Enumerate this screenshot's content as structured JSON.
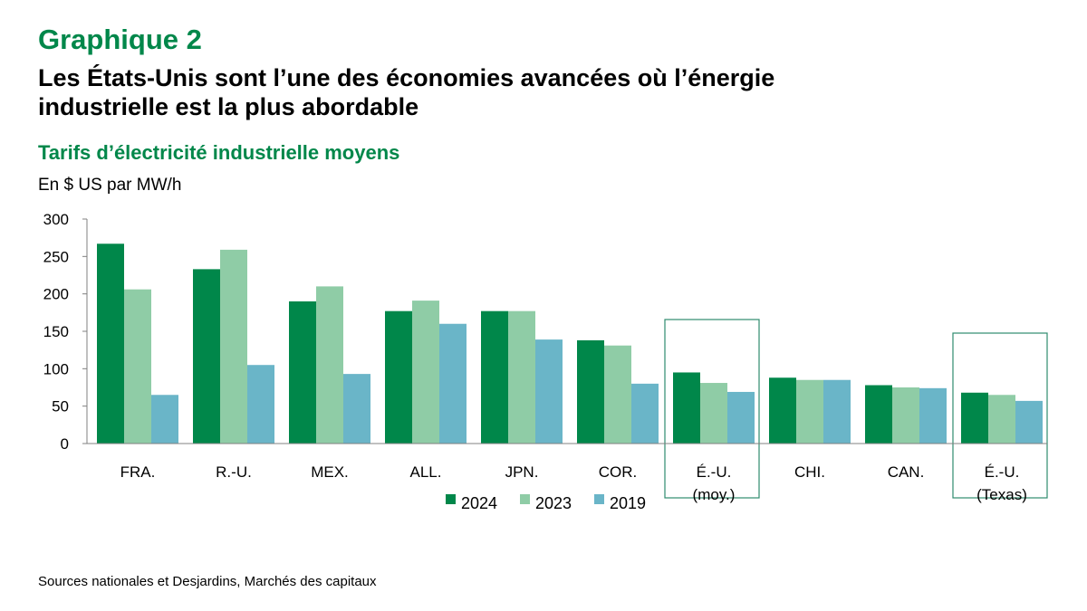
{
  "header": {
    "graph_label": "Graphique 2",
    "title_line1": "Les États-Unis sont l’une des économies avancées où l’énergie",
    "title_line2": "industrielle est la plus abordable",
    "subtitle": "Tarifs d’électricité industrielle moyens",
    "unit": "En $ US par MW/h"
  },
  "source": "Sources nationales et Desjardins, Marchés des capitaux",
  "colors": {
    "2024": "#00874a",
    "2023": "#8fcca6",
    "2019": "#6ab5c8",
    "highlight_box": "#2e8b6e"
  },
  "chart_data": {
    "type": "bar",
    "title": "Tarifs d’électricité industrielle moyens",
    "ylabel": "En $ US par MW/h",
    "ylim": [
      0,
      300
    ],
    "yticks": [
      "0",
      "50",
      "100",
      "150",
      "200",
      "250",
      "300"
    ],
    "categories": [
      [
        "FRA."
      ],
      [
        "R.-U."
      ],
      [
        "MEX."
      ],
      [
        "ALL."
      ],
      [
        "JPN."
      ],
      [
        "COR."
      ],
      [
        "É.-U.",
        "(moy.)"
      ],
      [
        "CHI."
      ],
      [
        "CAN."
      ],
      [
        "É.-U.",
        "(Texas)"
      ]
    ],
    "series": [
      {
        "name": "2024",
        "values": [
          267,
          233,
          190,
          177,
          177,
          138,
          95,
          88,
          78,
          68
        ]
      },
      {
        "name": "2023",
        "values": [
          206,
          259,
          210,
          191,
          177,
          131,
          81,
          85,
          75,
          65
        ]
      },
      {
        "name": "2019",
        "values": [
          65,
          105,
          93,
          160,
          139,
          80,
          69,
          85,
          74,
          57
        ]
      }
    ],
    "highlighted_categories": [
      6,
      9
    ],
    "legend_position": "bottom-center"
  }
}
